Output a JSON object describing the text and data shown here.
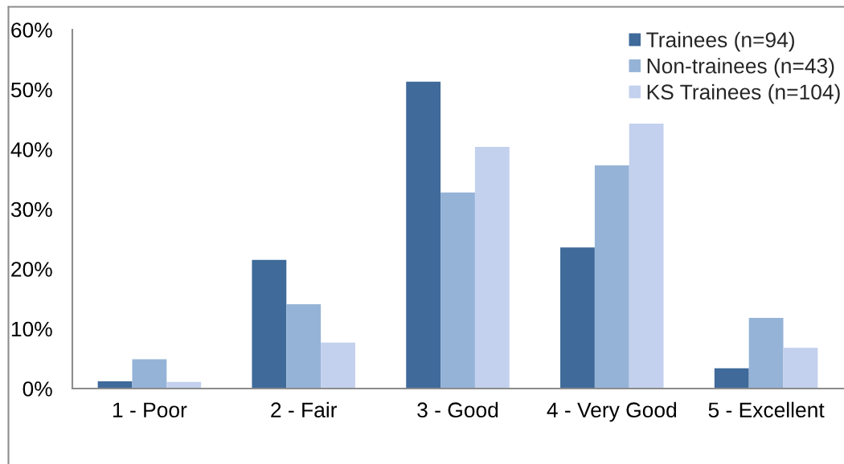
{
  "chart_data": {
    "type": "bar",
    "categories": [
      "1 - Poor",
      "2 - Fair",
      "3 - Good",
      "4 - Very Good",
      "5 - Excellent"
    ],
    "series": [
      {
        "name": "Trainees (n=94)",
        "color": "#3f6a9a",
        "values": [
          1.2,
          21.5,
          51.3,
          23.6,
          3.4
        ]
      },
      {
        "name": "Non-trainees (n=43)",
        "color": "#95b3d7",
        "values": [
          4.9,
          14.1,
          32.8,
          37.3,
          11.8
        ]
      },
      {
        "name": "KS Trainees (n=104)",
        "color": "#c3d1ee",
        "values": [
          1.1,
          7.7,
          40.4,
          44.3,
          6.8
        ]
      }
    ],
    "ylim": [
      0,
      60
    ],
    "yticks": [
      {
        "value": 0,
        "label": "0%"
      },
      {
        "value": 10,
        "label": "10%"
      },
      {
        "value": 20,
        "label": "20%"
      },
      {
        "value": 30,
        "label": "30%"
      },
      {
        "value": 40,
        "label": "40%"
      },
      {
        "value": 50,
        "label": "50%"
      },
      {
        "value": 60,
        "label": "60%"
      }
    ],
    "grid": false,
    "legend": "top right"
  }
}
